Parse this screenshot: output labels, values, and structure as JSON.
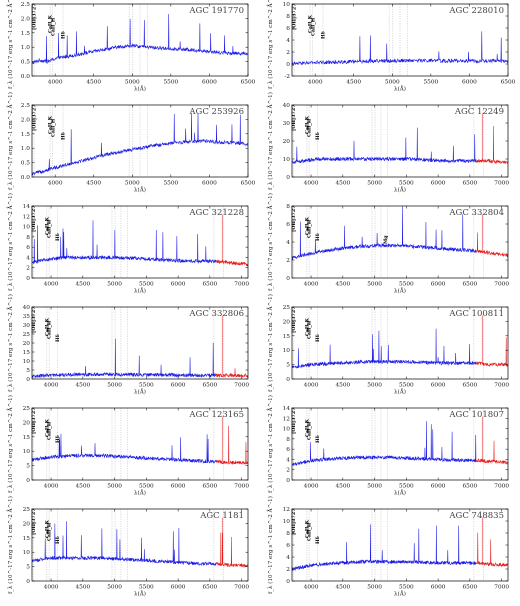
{
  "chart_data": [
    {
      "type": "line",
      "title": "AGC 191770",
      "xlabel": "λ(Å)",
      "ylabel": "f_λ (10^-17 erg s^-1 cm^-2 Å^-1)",
      "xlim": [
        3700,
        6500
      ],
      "ylim": [
        0.0,
        2.5
      ],
      "xticks": [
        "4000",
        "4500",
        "5000",
        "5500",
        "6000",
        "6500"
      ],
      "yticks": [
        "0.0",
        "0.5",
        "1.0",
        "1.5",
        "2.0",
        "2.5"
      ],
      "line_labels": [
        "[OII]3727",
        "CaII_K",
        "CaII_H",
        "Hδ"
      ],
      "series": [
        {
          "color": "blue",
          "x": [
            3700,
            3800,
            3900,
            4000,
            4200,
            4500,
            4800,
            5000,
            5200,
            5500,
            5800,
            6000,
            6200,
            6500
          ],
          "y": [
            0.45,
            0.55,
            0.5,
            0.6,
            0.7,
            0.85,
            1.0,
            1.05,
            1.0,
            0.95,
            0.9,
            0.85,
            0.8,
            0.78
          ]
        }
      ]
    },
    {
      "type": "line",
      "title": "AGC 228010",
      "xlabel": "λ(Å)",
      "ylabel": "f_λ (10^-17 erg s^-1 cm^-2 Å^-1)",
      "xlim": [
        3700,
        6500
      ],
      "ylim": [
        -2,
        10
      ],
      "xticks": [
        "4000",
        "4500",
        "5000",
        "5500",
        "6000",
        "6500"
      ],
      "yticks": [
        "-2",
        "0",
        "2",
        "4",
        "6",
        "8",
        "10"
      ],
      "line_labels": [
        "[OII]3727",
        "CaII_K",
        "CaII_H",
        "Hδ"
      ],
      "series": [
        {
          "color": "blue",
          "x": [
            3700,
            3900,
            4200,
            4500,
            4800,
            5000,
            5200,
            5500,
            6000,
            6500
          ],
          "y": [
            0.0,
            0.2,
            0.3,
            0.4,
            0.5,
            0.55,
            0.6,
            0.55,
            0.5,
            0.5
          ]
        }
      ]
    },
    {
      "type": "line",
      "title": "AGC 253926",
      "xlabel": "λ(Å)",
      "ylabel": "f_λ (10^-17 erg s^-1 cm^-2 Å^-1)",
      "xlim": [
        3700,
        6500
      ],
      "ylim": [
        0.0,
        2.5
      ],
      "xticks": [
        "4000",
        "4500",
        "5000",
        "5500",
        "6000",
        "6500"
      ],
      "yticks": [
        "0.0",
        "0.5",
        "1.0",
        "1.5",
        "2.0",
        "2.5"
      ],
      "line_labels": [
        "[OII]3727",
        "CaII_K",
        "CaII_H",
        "Hδ"
      ],
      "series": [
        {
          "color": "blue",
          "x": [
            3700,
            3900,
            4100,
            4400,
            4700,
            5000,
            5300,
            5600,
            5900,
            6200,
            6500
          ],
          "y": [
            0.1,
            0.25,
            0.4,
            0.6,
            0.8,
            0.95,
            1.1,
            1.2,
            1.25,
            1.2,
            1.15
          ]
        }
      ]
    },
    {
      "type": "line",
      "title": "AGC 12249",
      "xlabel": "λ(Å)",
      "ylabel": "f_λ (10^-17 erg s^-1 cm^-2 Å^-1)",
      "xlim": [
        3700,
        7100
      ],
      "ylim": [
        0,
        40
      ],
      "xticks": [
        "4000",
        "4500",
        "5000",
        "5500",
        "6000",
        "6500",
        "7000"
      ],
      "yticks": [
        "0",
        "10",
        "20",
        "30",
        "40"
      ],
      "line_labels": [
        "[OII]3727",
        "CaII_K",
        "CaII_H",
        "Hδ"
      ],
      "series": [
        {
          "color": "blue",
          "x": [
            3700,
            3900,
            4100,
            4400,
            4800,
            5200,
            5600,
            6000,
            6400,
            6600
          ],
          "y": [
            8,
            9,
            10,
            10,
            10,
            10,
            10,
            9,
            9,
            9
          ]
        },
        {
          "color": "red",
          "x": [
            6600,
            6800,
            7000,
            7100
          ],
          "y": [
            9,
            9,
            8,
            8
          ]
        }
      ]
    },
    {
      "type": "line",
      "title": "AGC 321228",
      "xlabel": "λ(Å)",
      "ylabel": "f_λ (10^-17 erg s^-1 cm^-2 Å^-1)",
      "xlim": [
        3700,
        7100
      ],
      "ylim": [
        0,
        14
      ],
      "xticks": [
        "4000",
        "4500",
        "5000",
        "5500",
        "6000",
        "6500",
        "7000"
      ],
      "yticks": [
        "0",
        "2",
        "4",
        "6",
        "8",
        "10",
        "12",
        "14"
      ],
      "line_labels": [
        "[OII]3727",
        "CaII_K",
        "CaII_H",
        "Hδ"
      ],
      "series": [
        {
          "color": "blue",
          "x": [
            3700,
            3900,
            4200,
            4600,
            5000,
            5400,
            5800,
            6200,
            6600
          ],
          "y": [
            3,
            3.5,
            4,
            4,
            4,
            3.8,
            3.5,
            3.3,
            3.2
          ]
        },
        {
          "color": "red",
          "x": [
            6600,
            6800,
            7000,
            7100
          ],
          "y": [
            3.2,
            3,
            2.8,
            2.6
          ]
        }
      ]
    },
    {
      "type": "line",
      "title": "AGC 332804",
      "xlabel": "λ(Å)",
      "ylabel": "f_λ (10^-17 erg s^-1 cm^-2 Å^-1)",
      "xlim": [
        3700,
        7100
      ],
      "ylim": [
        0,
        8
      ],
      "xticks": [
        "4000",
        "4500",
        "5000",
        "5500",
        "6000",
        "6500",
        "7000"
      ],
      "yticks": [
        "0",
        "2",
        "4",
        "6",
        "8"
      ],
      "line_labels": [
        "[OII]3727",
        "CaII_K",
        "CaII_H",
        "Hδ",
        "Mg"
      ],
      "series": [
        {
          "color": "blue",
          "x": [
            3700,
            3900,
            4200,
            4600,
            5000,
            5400,
            5800,
            6200,
            6600
          ],
          "y": [
            2.2,
            2.6,
            3.0,
            3.4,
            3.6,
            3.6,
            3.4,
            3.2,
            3.0
          ]
        },
        {
          "color": "red",
          "x": [
            6600,
            6800,
            7000,
            7100
          ],
          "y": [
            3.0,
            2.8,
            2.6,
            2.5
          ]
        }
      ]
    },
    {
      "type": "line",
      "title": "AGC 332806",
      "xlabel": "λ(Å)",
      "ylabel": "f_λ (10^-17 erg s^-1 cm^-2 Å^-1)",
      "xlim": [
        3700,
        7100
      ],
      "ylim": [
        0,
        40
      ],
      "xticks": [
        "4000",
        "4500",
        "5000",
        "5500",
        "6000",
        "6500",
        "7000"
      ],
      "yticks": [
        "0",
        "5",
        "10",
        "15",
        "20",
        "25",
        "30",
        "35",
        "40"
      ],
      "line_labels": [
        "[OII]3727",
        "CaII_K",
        "CaII_H",
        "Hδ"
      ],
      "series": [
        {
          "color": "blue",
          "x": [
            3700,
            4000,
            4400,
            4800,
            5200,
            5600,
            6000,
            6400,
            6600
          ],
          "y": [
            1.5,
            2,
            2.5,
            2.5,
            2.5,
            2.3,
            2.2,
            2.0,
            2.0
          ]
        },
        {
          "color": "red",
          "x": [
            6600,
            6800,
            7000,
            7100
          ],
          "y": [
            2.0,
            2.0,
            1.8,
            1.8
          ]
        }
      ]
    },
    {
      "type": "line",
      "title": "AGC 100811",
      "xlabel": "λ(Å)",
      "ylabel": "f_λ (10^-17 erg s^-1 cm^-2 Å^-1)",
      "xlim": [
        3700,
        7100
      ],
      "ylim": [
        0,
        25
      ],
      "xticks": [
        "4000",
        "4500",
        "5000",
        "5500",
        "6000",
        "6500",
        "7000"
      ],
      "yticks": [
        "0",
        "5",
        "10",
        "15",
        "20",
        "25"
      ],
      "line_labels": [
        "[OII]3727",
        "CaII_K",
        "CaII_H",
        "Hδ"
      ],
      "series": [
        {
          "color": "blue",
          "x": [
            3700,
            4000,
            4400,
            4800,
            5200,
            5600,
            6000,
            6400,
            6600
          ],
          "y": [
            4,
            5,
            5.5,
            6,
            6,
            6,
            5.5,
            5.5,
            5.5
          ]
        },
        {
          "color": "red",
          "x": [
            6600,
            6800,
            7000,
            7100
          ],
          "y": [
            5.5,
            5,
            5,
            5
          ]
        }
      ]
    },
    {
      "type": "line",
      "title": "AGC 123165",
      "xlabel": "λ(Å)",
      "ylabel": "f_λ (10^-17 erg s^-1 cm^-2 Å^-1)",
      "xlim": [
        3700,
        7100
      ],
      "ylim": [
        0,
        25
      ],
      "xticks": [
        "4000",
        "4500",
        "5000",
        "5500",
        "6000",
        "6500",
        "7000"
      ],
      "yticks": [
        "0",
        "5",
        "10",
        "15",
        "20",
        "25"
      ],
      "line_labels": [
        "[OII]3727",
        "CaII_K",
        "CaII_H",
        "Hδ"
      ],
      "series": [
        {
          "color": "blue",
          "x": [
            3700,
            4000,
            4400,
            4800,
            5200,
            5600,
            6000,
            6400,
            6600
          ],
          "y": [
            7,
            8,
            8.5,
            8.5,
            8,
            7.5,
            7,
            6.5,
            6.5
          ]
        },
        {
          "color": "red",
          "x": [
            6600,
            6800,
            7000,
            7100
          ],
          "y": [
            6.5,
            6,
            6,
            6
          ]
        }
      ]
    },
    {
      "type": "line",
      "title": "AGC 101807",
      "xlabel": "λ(Å)",
      "ylabel": "f_λ (10^-17 erg s^-1 cm^-2 Å^-1)",
      "xlim": [
        3700,
        7100
      ],
      "ylim": [
        0,
        14
      ],
      "xticks": [
        "4000",
        "4500",
        "5000",
        "5500",
        "6000",
        "6500",
        "7000"
      ],
      "yticks": [
        "0",
        "2",
        "4",
        "6",
        "8",
        "10",
        "12",
        "14"
      ],
      "line_labels": [
        "[OII]3727",
        "CaII_K",
        "CaII_H",
        "Hδ"
      ],
      "series": [
        {
          "color": "blue",
          "x": [
            3700,
            4000,
            4400,
            4800,
            5200,
            5600,
            6000,
            6400,
            6600
          ],
          "y": [
            3,
            3.8,
            4.2,
            4.4,
            4.4,
            4.2,
            4.0,
            3.8,
            3.8
          ]
        },
        {
          "color": "red",
          "x": [
            6600,
            6800,
            7000,
            7100
          ],
          "y": [
            3.8,
            3.6,
            3.5,
            3.4
          ]
        }
      ]
    },
    {
      "type": "line",
      "title": "AGC 1181",
      "xlabel": "λ(Å)",
      "ylabel": "f_λ (10^-17 erg s^-1 cm^-2 Å^-1)",
      "xlim": [
        3700,
        7100
      ],
      "ylim": [
        0,
        25
      ],
      "xticks": [
        "4000",
        "4500",
        "5000",
        "5500",
        "6000",
        "6500",
        "7000"
      ],
      "yticks": [
        "0",
        "5",
        "10",
        "15",
        "20",
        "25"
      ],
      "line_labels": [
        "[OII]3727",
        "CaII_K",
        "CaII_H",
        "Hδ"
      ],
      "series": [
        {
          "color": "blue",
          "x": [
            3700,
            4000,
            4400,
            4800,
            5200,
            5600,
            6000,
            6400,
            6600
          ],
          "y": [
            7,
            8,
            8,
            8,
            7.5,
            7,
            6.5,
            6,
            6
          ]
        },
        {
          "color": "red",
          "x": [
            6600,
            6800,
            7000,
            7100
          ],
          "y": [
            6,
            5.5,
            5.5,
            5
          ]
        }
      ]
    },
    {
      "type": "line",
      "title": "AGC 748835",
      "xlabel": "λ(Å)",
      "ylabel": "f_λ (10^-17 erg s^-1 cm^-2 Å^-1)",
      "xlim": [
        3700,
        7100
      ],
      "ylim": [
        0,
        12
      ],
      "xticks": [
        "4000",
        "4500",
        "5000",
        "5500",
        "6000",
        "6500",
        "7000"
      ],
      "yticks": [
        "0",
        "2",
        "4",
        "6",
        "8",
        "10",
        "12"
      ],
      "line_labels": [
        "[OII]3727",
        "CaII_K",
        "CaII_H",
        "Hδ"
      ],
      "series": [
        {
          "color": "blue",
          "x": [
            3700,
            4000,
            4400,
            4800,
            5200,
            5600,
            6000,
            6400,
            6600
          ],
          "y": [
            2,
            2.6,
            3.0,
            3.2,
            3.2,
            3.2,
            3.0,
            3.0,
            3.0
          ]
        },
        {
          "color": "red",
          "x": [
            6600,
            6800,
            7000,
            7100
          ],
          "y": [
            3.0,
            2.8,
            2.7,
            2.6
          ]
        }
      ]
    }
  ],
  "colors": {
    "blue": "#1a1ae6",
    "red": "#e61a1a",
    "frame": "#000000",
    "marker": "#999999"
  }
}
